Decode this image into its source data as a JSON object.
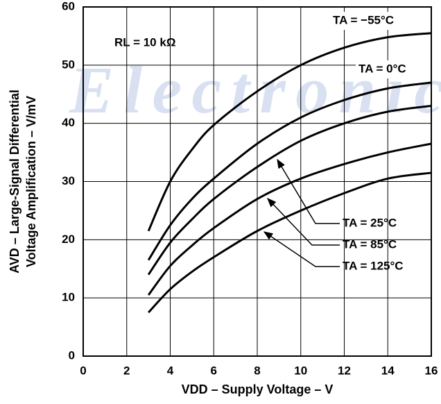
{
  "chart_data": {
    "type": "line",
    "watermark": "Electronic",
    "annotation": "RL = 10 kΩ",
    "xlabel": "VDD – Supply Voltage – V",
    "ylabel": [
      "AVD – Large-Signal Differential",
      "Voltage Amplification – V/mV"
    ],
    "x": [
      3,
      4,
      5,
      6,
      8,
      10,
      12,
      14,
      16
    ],
    "series": [
      {
        "name": "TA = −55°C",
        "color": "#000000",
        "values": [
          21.5,
          30,
          35.5,
          39.7,
          45.5,
          50,
          53,
          54.8,
          55.5
        ]
      },
      {
        "name": "TA = 0°C",
        "color": "#000000",
        "values": [
          16.5,
          22.5,
          27,
          30.5,
          36.5,
          41,
          44,
          46,
          47
        ]
      },
      {
        "name": "TA = 25°C",
        "color": "#000000",
        "values": [
          14,
          19.5,
          23.5,
          27,
          32.5,
          37,
          40,
          42,
          43
        ]
      },
      {
        "name": "TA = 85°C",
        "color": "#000000",
        "values": [
          10.5,
          15.5,
          19,
          22,
          27,
          30.5,
          33,
          35,
          36.5
        ]
      },
      {
        "name": "TA = 125°C",
        "color": "#000000",
        "values": [
          7.5,
          11.5,
          14.5,
          17,
          21.5,
          25,
          28,
          30.5,
          31.5
        ]
      }
    ],
    "xlim": [
      0,
      16
    ],
    "xticks": [
      0,
      2,
      4,
      6,
      8,
      10,
      12,
      14,
      16
    ],
    "ylim": [
      0,
      60
    ],
    "yticks": [
      0,
      10,
      20,
      30,
      40,
      50,
      60
    ],
    "grid": true
  }
}
